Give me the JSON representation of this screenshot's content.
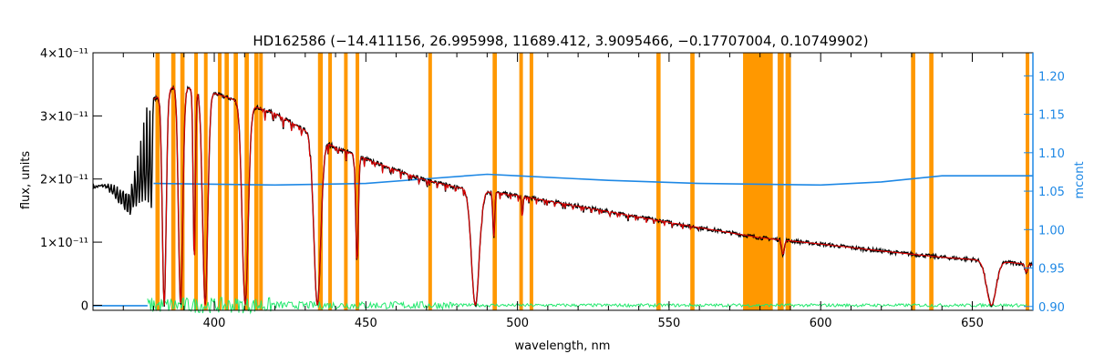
{
  "chart_data": {
    "type": "line",
    "title": "HD162586   (−14.411156, 26.995998, 11689.412, 3.9095466, −0.17707004, 0.10749902)",
    "xlabel": "wavelength, nm",
    "ylabel": "flux, units",
    "y2label": "mcont",
    "xlim": [
      360,
      670
    ],
    "ylim": [
      -8e-13,
      4e-11
    ],
    "y2lim": [
      0.895,
      1.23
    ],
    "x_ticks": [
      400,
      450,
      500,
      550,
      600,
      650
    ],
    "y_ticks": [
      0,
      1e-11,
      2e-11,
      3e-11,
      4e-11
    ],
    "y_tick_labels": [
      "0",
      "1×10⁻¹¹",
      "2×10⁻¹¹",
      "3×10⁻¹¹",
      "4×10⁻¹¹"
    ],
    "y2_ticks": [
      0.9,
      0.95,
      1.0,
      1.05,
      1.1,
      1.15,
      1.2
    ],
    "y2_tick_labels": [
      "0.90",
      "0.95",
      "1.00",
      "1.05",
      "1.10",
      "1.15",
      "1.20"
    ],
    "masked_regions_nm": [
      [
        380.6,
        382.0
      ],
      [
        385.8,
        387.2
      ],
      [
        388.8,
        390.2
      ],
      [
        393.4,
        394.6
      ],
      [
        396.6,
        397.8
      ],
      [
        401.2,
        402.4
      ],
      [
        403.4,
        404.8
      ],
      [
        406.4,
        407.8
      ],
      [
        410.0,
        411.4
      ],
      [
        413.2,
        414.6
      ],
      [
        414.8,
        416.0
      ],
      [
        434.2,
        435.8
      ],
      [
        437.6,
        438.8
      ],
      [
        442.8,
        444.0
      ],
      [
        446.6,
        447.8
      ],
      [
        470.6,
        471.8
      ],
      [
        491.8,
        493.2
      ],
      [
        500.6,
        501.8
      ],
      [
        504.0,
        505.2
      ],
      [
        545.8,
        547.2
      ],
      [
        557.0,
        558.4
      ],
      [
        574.4,
        584.2
      ],
      [
        585.8,
        587.8
      ],
      [
        588.4,
        590.2
      ],
      [
        629.8,
        631.2
      ],
      [
        635.8,
        637.2
      ],
      [
        667.6,
        668.8
      ]
    ],
    "series": [
      {
        "kind": "observed",
        "color": "#000000",
        "continuum": [
          [
            360,
            1.87e-11
          ],
          [
            372,
            1.95e-11
          ],
          [
            378,
            3.2e-11
          ],
          [
            387,
            3.48e-11
          ],
          [
            400,
            3.36e-11
          ],
          [
            420,
            3.04e-11
          ],
          [
            440,
            2.5e-11
          ],
          [
            460,
            2.14e-11
          ],
          [
            470,
            1.98e-11
          ],
          [
            480,
            1.87e-11
          ],
          [
            500,
            1.74e-11
          ],
          [
            520,
            1.57e-11
          ],
          [
            540,
            1.4e-11
          ],
          [
            560,
            1.23e-11
          ],
          [
            580,
            1.07e-11
          ],
          [
            600,
            9.7e-12
          ],
          [
            620,
            8.6e-12
          ],
          [
            640,
            7.6e-12
          ],
          [
            660,
            6.9e-12
          ],
          [
            670,
            6.4e-12
          ]
        ],
        "absorption_lines": [
          [
            656.3,
            2.2,
            0.0
          ],
          [
            486.1,
            1.8,
            0.0
          ],
          [
            434.0,
            1.6,
            0.0
          ],
          [
            410.2,
            1.4,
            0.0
          ],
          [
            397.0,
            1.2,
            0.0
          ],
          [
            388.9,
            1.0,
            0.0
          ],
          [
            383.5,
            0.9,
            0.0
          ],
          [
            393.4,
            0.5,
            0.2
          ],
          [
            447.1,
            0.6,
            0.3
          ],
          [
            492.2,
            0.4,
            0.6
          ],
          [
            501.6,
            0.3,
            0.8
          ],
          [
            587.6,
            0.6,
            0.78
          ],
          [
            667.8,
            0.6,
            0.8
          ]
        ],
        "balmer_jump_nm": [
          364,
          380
        ]
      },
      {
        "kind": "model",
        "color": "#e00000",
        "follows": "observed"
      },
      {
        "kind": "mcont",
        "color": "#1e88e5",
        "axis": "right",
        "x": [
          380,
          420,
          450,
          470,
          490,
          500,
          530,
          560,
          600,
          620,
          640,
          670
        ],
        "y": [
          1.06,
          1.058,
          1.06,
          1.066,
          1.072,
          1.07,
          1.064,
          1.06,
          1.058,
          1.062,
          1.07,
          1.07
        ]
      },
      {
        "kind": "residual",
        "color": "#22e86e",
        "level": 0.0
      }
    ]
  }
}
